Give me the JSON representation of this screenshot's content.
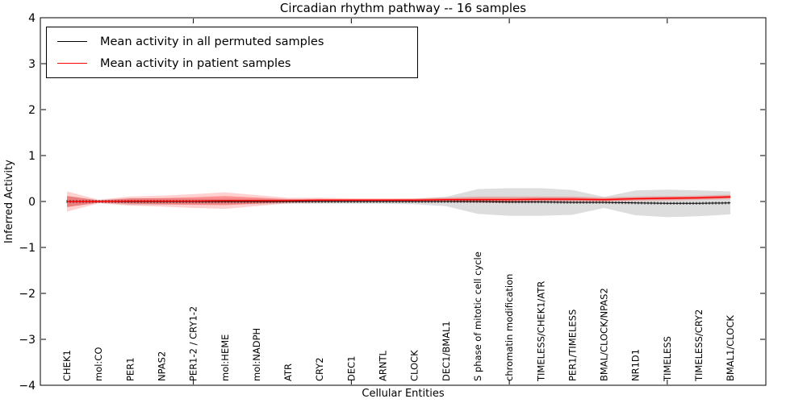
{
  "title": "Circadian rhythm pathway -- 16 samples",
  "axes": {
    "xlabel": "Cellular Entities",
    "ylabel": "Inferred Activity"
  },
  "legend": {
    "items": [
      {
        "label": "Mean activity in all permuted samples",
        "color": "#000000"
      },
      {
        "label": "Mean activity in patient samples",
        "color": "#ff0000"
      }
    ]
  },
  "chart_data": {
    "type": "line",
    "title": "Circadian rhythm pathway -- 16 samples",
    "xlabel": "Cellular Entities",
    "ylabel": "Inferred Activity",
    "ylim": [
      -4,
      4
    ],
    "ytick_values": [
      4,
      3,
      2,
      1,
      0,
      -1,
      -2,
      -3,
      -4
    ],
    "ytick_labels": [
      "4",
      "3",
      "2",
      "1",
      "0",
      "−1",
      "−2",
      "−3",
      "−4"
    ],
    "grid": false,
    "legend_position": "upper left",
    "categories": [
      "CHEK1",
      "mol:CO",
      "PER1",
      "NPAS2",
      "PER1-2 / CRY1-2",
      "mol:HEME",
      "mol:NADPH",
      "ATR",
      "CRY2",
      "DEC1",
      "ARNTL",
      "CLOCK",
      "DEC1/BMAL1",
      "S phase of mitotic cell cycle",
      "chromatin modification",
      "TIMELESS/CHEK1/ATR",
      "PER1/TIMELESS",
      "BMAL/CLOCK/NPAS2",
      "NR1D1",
      "TIMELESS",
      "TIMELESS/CRY2",
      "BMAL1/CLOCK"
    ],
    "xtick_mark_indices": [
      4,
      9,
      14,
      19
    ],
    "series": [
      {
        "name": "Mean activity in all permuted samples",
        "color": "#000000",
        "values": [
          0,
          0,
          0,
          0,
          0,
          0,
          0,
          0,
          0,
          0,
          0,
          0,
          0,
          0,
          -0.01,
          -0.01,
          -0.02,
          -0.02,
          -0.03,
          -0.04,
          -0.04,
          -0.03
        ],
        "band": {
          "halfwidths": [
            0.12,
            0.03,
            0.07,
            0.07,
            0.06,
            0.06,
            0.06,
            0.05,
            0.05,
            0.05,
            0.05,
            0.06,
            0.1,
            0.27,
            0.3,
            0.3,
            0.27,
            0.12,
            0.27,
            0.3,
            0.28,
            0.25
          ],
          "color": "#808080",
          "opacity": 0.27
        }
      },
      {
        "name": "Mean activity in patient samples",
        "color": "#ff0000",
        "values": [
          0,
          0,
          0.01,
          0.01,
          0.01,
          0.02,
          0.02,
          0.02,
          0.03,
          0.03,
          0.03,
          0.03,
          0.04,
          0.04,
          0.04,
          0.05,
          0.05,
          0.04,
          0.06,
          0.07,
          0.08,
          0.1
        ],
        "band": {
          "halfwidths": [
            0.22,
            0.04,
            0.1,
            0.12,
            0.15,
            0.18,
            0.12,
            0.06,
            0.05,
            0.04,
            0.04,
            0.04,
            0.05,
            0.07,
            0.07,
            0.06,
            0.06,
            0.05,
            0.05,
            0.05,
            0.05,
            0.05
          ],
          "color": "#ff0000",
          "opacity": 0.18
        }
      }
    ]
  }
}
